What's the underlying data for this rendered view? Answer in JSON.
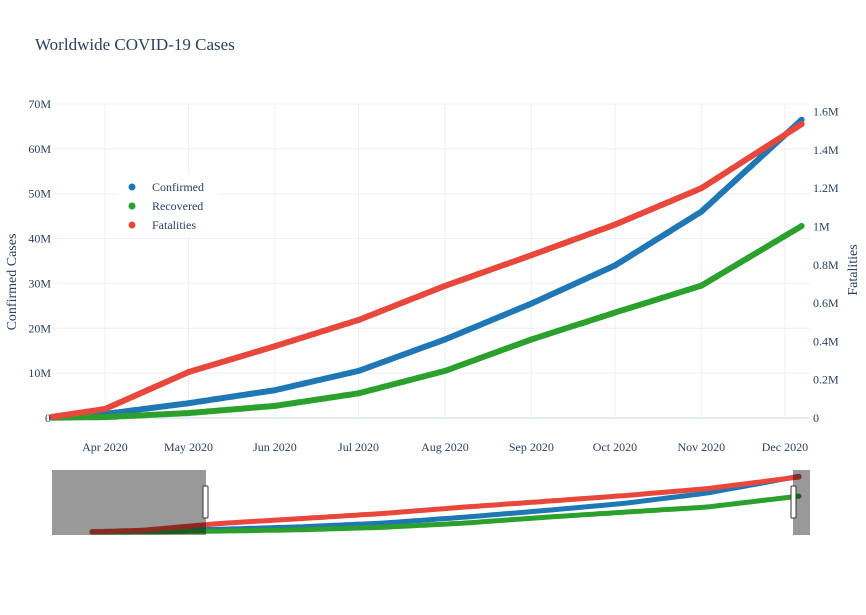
{
  "chart_data": {
    "type": "scatter",
    "title": "Worldwide COVID-19 Cases",
    "y_left_label": "Confirmed Cases",
    "y_right_label": "Fatalities",
    "x_range": [
      "2020-03-13",
      "2020-12-10"
    ],
    "y_left_range": [
      0,
      70000000
    ],
    "y_right_range": [
      0,
      1640000
    ],
    "x_ticks": [
      {
        "date": "2020-04-01",
        "label": "Apr 2020"
      },
      {
        "date": "2020-05-01",
        "label": "May 2020"
      },
      {
        "date": "2020-06-01",
        "label": "Jun 2020"
      },
      {
        "date": "2020-07-01",
        "label": "Jul 2020"
      },
      {
        "date": "2020-08-01",
        "label": "Aug 2020"
      },
      {
        "date": "2020-09-01",
        "label": "Sep 2020"
      },
      {
        "date": "2020-10-01",
        "label": "Oct 2020"
      },
      {
        "date": "2020-11-01",
        "label": "Nov 2020"
      },
      {
        "date": "2020-12-01",
        "label": "Dec 2020"
      }
    ],
    "y_left_ticks": [
      {
        "value": 0,
        "label": "0"
      },
      {
        "value": 10000000,
        "label": "10M"
      },
      {
        "value": 20000000,
        "label": "20M"
      },
      {
        "value": 30000000,
        "label": "30M"
      },
      {
        "value": 40000000,
        "label": "40M"
      },
      {
        "value": 50000000,
        "label": "50M"
      },
      {
        "value": 60000000,
        "label": "60M"
      },
      {
        "value": 70000000,
        "label": "70M"
      }
    ],
    "y_right_ticks": [
      {
        "value": 0,
        "label": "0"
      },
      {
        "value": 200000,
        "label": "0.2M"
      },
      {
        "value": 400000,
        "label": "0.4M"
      },
      {
        "value": 600000,
        "label": "0.6M"
      },
      {
        "value": 800000,
        "label": "0.8M"
      },
      {
        "value": 1000000,
        "label": "1M"
      },
      {
        "value": 1200000,
        "label": "1.2M"
      },
      {
        "value": 1400000,
        "label": "1.4M"
      },
      {
        "value": 1600000,
        "label": "1.6M"
      }
    ],
    "legend_position": "top-left",
    "series": [
      {
        "name": "Confirmed",
        "axis": "left",
        "color": "#1f77b4",
        "points": [
          [
            "2020-03-13",
            150000
          ],
          [
            "2020-04-01",
            900000
          ],
          [
            "2020-05-01",
            3300000
          ],
          [
            "2020-06-01",
            6200000
          ],
          [
            "2020-07-01",
            10500000
          ],
          [
            "2020-08-01",
            17500000
          ],
          [
            "2020-09-01",
            25500000
          ],
          [
            "2020-10-01",
            34000000
          ],
          [
            "2020-11-01",
            46000000
          ],
          [
            "2020-12-07",
            66500000
          ]
        ]
      },
      {
        "name": "Recovered",
        "axis": "left",
        "color": "#2ca02c",
        "points": [
          [
            "2020-03-13",
            70000
          ],
          [
            "2020-04-01",
            200000
          ],
          [
            "2020-05-01",
            1100000
          ],
          [
            "2020-06-01",
            2700000
          ],
          [
            "2020-07-01",
            5500000
          ],
          [
            "2020-08-01",
            10500000
          ],
          [
            "2020-09-01",
            17500000
          ],
          [
            "2020-10-01",
            23500000
          ],
          [
            "2020-11-01",
            29500000
          ],
          [
            "2020-12-07",
            42800000
          ]
        ]
      },
      {
        "name": "Fatalities",
        "axis": "right",
        "color": "#e8473b",
        "points": [
          [
            "2020-03-13",
            6000
          ],
          [
            "2020-04-01",
            47000
          ],
          [
            "2020-05-01",
            240000
          ],
          [
            "2020-06-01",
            375000
          ],
          [
            "2020-07-01",
            512000
          ],
          [
            "2020-08-01",
            690000
          ],
          [
            "2020-09-01",
            850000
          ],
          [
            "2020-10-01",
            1010000
          ],
          [
            "2020-11-01",
            1200000
          ],
          [
            "2020-12-07",
            1535000
          ]
        ]
      }
    ],
    "range_slider": {
      "visible_start": "2020-03-13",
      "visible_end": "2020-12-10"
    }
  }
}
